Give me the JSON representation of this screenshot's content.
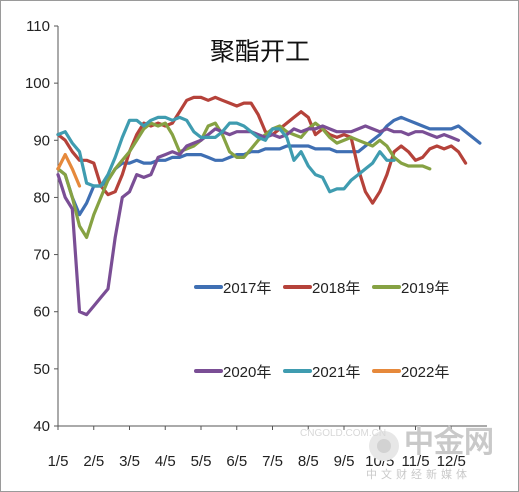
{
  "chart_data": {
    "type": "line",
    "title": "聚酯开工",
    "xlabel": "",
    "ylabel": "",
    "ylim": [
      40,
      110
    ],
    "yticks": [
      40,
      50,
      60,
      70,
      80,
      90,
      100,
      110
    ],
    "x_ticks": [
      "1/5",
      "2/5",
      "3/5",
      "4/5",
      "5/5",
      "6/5",
      "7/5",
      "8/5",
      "9/5",
      "10/5",
      "11/5",
      "12/5"
    ],
    "grid": false,
    "legend_position": "inside-bottom",
    "series": [
      {
        "name": "2017年",
        "color": "#3f6fb3",
        "values": [
          [
            1.0,
            85
          ],
          [
            1.2,
            84
          ],
          [
            1.4,
            80
          ],
          [
            1.6,
            77
          ],
          [
            1.8,
            79
          ],
          [
            2.0,
            82
          ],
          [
            2.2,
            82
          ],
          [
            2.4,
            83
          ],
          [
            2.6,
            85
          ],
          [
            2.8,
            86
          ],
          [
            3.0,
            86
          ],
          [
            3.2,
            86.5
          ],
          [
            3.4,
            86
          ],
          [
            3.6,
            86
          ],
          [
            3.8,
            86.5
          ],
          [
            4.0,
            86.5
          ],
          [
            4.2,
            87
          ],
          [
            4.4,
            87
          ],
          [
            4.6,
            87.5
          ],
          [
            4.8,
            87.5
          ],
          [
            5.0,
            87.5
          ],
          [
            5.2,
            87
          ],
          [
            5.4,
            86.5
          ],
          [
            5.6,
            86.5
          ],
          [
            5.8,
            87
          ],
          [
            6.0,
            87.5
          ],
          [
            6.2,
            87.5
          ],
          [
            6.4,
            88
          ],
          [
            6.6,
            88
          ],
          [
            6.8,
            88.5
          ],
          [
            7.0,
            88.5
          ],
          [
            7.2,
            88.5
          ],
          [
            7.4,
            89
          ],
          [
            7.6,
            89
          ],
          [
            7.8,
            89
          ],
          [
            8.0,
            89
          ],
          [
            8.2,
            88.5
          ],
          [
            8.4,
            88.5
          ],
          [
            8.6,
            88.5
          ],
          [
            8.8,
            88
          ],
          [
            9.0,
            88
          ],
          [
            9.2,
            88
          ],
          [
            9.4,
            88
          ],
          [
            9.6,
            89
          ],
          [
            9.8,
            90
          ],
          [
            10.0,
            91
          ],
          [
            10.2,
            92.5
          ],
          [
            10.4,
            93.5
          ],
          [
            10.6,
            94
          ],
          [
            10.8,
            93.5
          ],
          [
            11.0,
            93
          ],
          [
            11.2,
            92.5
          ],
          [
            11.4,
            92
          ],
          [
            11.6,
            92
          ],
          [
            11.8,
            92
          ],
          [
            12.0,
            92
          ],
          [
            12.2,
            92.5
          ],
          [
            12.4,
            91.5
          ],
          [
            12.6,
            90.5
          ],
          [
            12.8,
            89.5
          ]
        ]
      },
      {
        "name": "2018年",
        "color": "#b5423a",
        "values": [
          [
            1.0,
            91
          ],
          [
            1.2,
            90
          ],
          [
            1.4,
            88
          ],
          [
            1.6,
            86.5
          ],
          [
            1.8,
            86.5
          ],
          [
            2.0,
            86
          ],
          [
            2.2,
            82
          ],
          [
            2.4,
            80.5
          ],
          [
            2.6,
            81
          ],
          [
            2.8,
            84
          ],
          [
            3.0,
            88
          ],
          [
            3.2,
            91
          ],
          [
            3.4,
            93
          ],
          [
            3.6,
            92.5
          ],
          [
            3.8,
            93
          ],
          [
            4.0,
            92.5
          ],
          [
            4.2,
            93
          ],
          [
            4.4,
            95
          ],
          [
            4.6,
            97
          ],
          [
            4.8,
            97.5
          ],
          [
            5.0,
            97.5
          ],
          [
            5.2,
            97
          ],
          [
            5.4,
            97.5
          ],
          [
            5.6,
            97
          ],
          [
            5.8,
            96.5
          ],
          [
            6.0,
            96
          ],
          [
            6.2,
            96.5
          ],
          [
            6.4,
            96.5
          ],
          [
            6.6,
            94.5
          ],
          [
            6.8,
            91.5
          ],
          [
            7.0,
            91
          ],
          [
            7.2,
            92
          ],
          [
            7.4,
            93
          ],
          [
            7.6,
            94
          ],
          [
            7.8,
            95
          ],
          [
            8.0,
            94
          ],
          [
            8.2,
            91
          ],
          [
            8.4,
            92
          ],
          [
            8.6,
            91
          ],
          [
            8.8,
            90.5
          ],
          [
            9.0,
            91
          ],
          [
            9.2,
            90.5
          ],
          [
            9.4,
            85
          ],
          [
            9.6,
            81
          ],
          [
            9.8,
            79
          ],
          [
            10.0,
            81
          ],
          [
            10.2,
            84
          ],
          [
            10.4,
            88
          ],
          [
            10.6,
            89
          ],
          [
            10.8,
            88
          ],
          [
            11.0,
            86.5
          ],
          [
            11.2,
            87
          ],
          [
            11.4,
            88.5
          ],
          [
            11.6,
            89
          ],
          [
            11.8,
            88.5
          ],
          [
            12.0,
            89
          ],
          [
            12.2,
            88
          ],
          [
            12.4,
            86
          ]
        ]
      },
      {
        "name": "2019年",
        "color": "#86a243",
        "values": [
          [
            1.0,
            85
          ],
          [
            1.2,
            84
          ],
          [
            1.4,
            80
          ],
          [
            1.6,
            75
          ],
          [
            1.8,
            73
          ],
          [
            2.0,
            77
          ],
          [
            2.2,
            80
          ],
          [
            2.4,
            83
          ],
          [
            2.6,
            85
          ],
          [
            2.8,
            86.5
          ],
          [
            3.0,
            88
          ],
          [
            3.2,
            90
          ],
          [
            3.4,
            92
          ],
          [
            3.6,
            93
          ],
          [
            3.8,
            92.5
          ],
          [
            4.0,
            93
          ],
          [
            4.2,
            91
          ],
          [
            4.4,
            88
          ],
          [
            4.6,
            88.5
          ],
          [
            4.8,
            89
          ],
          [
            5.0,
            90
          ],
          [
            5.2,
            92.5
          ],
          [
            5.4,
            93
          ],
          [
            5.6,
            91
          ],
          [
            5.8,
            88
          ],
          [
            6.0,
            87
          ],
          [
            6.2,
            87
          ],
          [
            6.4,
            88.5
          ],
          [
            6.6,
            90
          ],
          [
            6.8,
            91
          ],
          [
            7.0,
            92
          ],
          [
            7.2,
            92.5
          ],
          [
            7.4,
            91.5
          ],
          [
            7.6,
            91
          ],
          [
            7.8,
            90.5
          ],
          [
            8.0,
            92
          ],
          [
            8.2,
            93
          ],
          [
            8.4,
            92
          ],
          [
            8.6,
            90.5
          ],
          [
            8.8,
            89.5
          ],
          [
            9.0,
            90
          ],
          [
            9.2,
            90.5
          ],
          [
            9.4,
            90
          ],
          [
            9.6,
            89.5
          ],
          [
            9.8,
            89
          ],
          [
            10.0,
            90
          ],
          [
            10.2,
            89
          ],
          [
            10.4,
            87
          ],
          [
            10.6,
            86
          ],
          [
            10.8,
            85.5
          ],
          [
            11.0,
            85.5
          ],
          [
            11.2,
            85.5
          ],
          [
            11.4,
            85
          ]
        ]
      },
      {
        "name": "2020年",
        "color": "#7a4e95",
        "values": [
          [
            1.0,
            84
          ],
          [
            1.2,
            80
          ],
          [
            1.4,
            78
          ],
          [
            1.6,
            60
          ],
          [
            1.8,
            59.5
          ],
          [
            2.0,
            61
          ],
          [
            2.2,
            62.5
          ],
          [
            2.4,
            64
          ],
          [
            2.6,
            73
          ],
          [
            2.8,
            80
          ],
          [
            3.0,
            81
          ],
          [
            3.2,
            84
          ],
          [
            3.4,
            83.5
          ],
          [
            3.6,
            84
          ],
          [
            3.8,
            87
          ],
          [
            4.0,
            87.5
          ],
          [
            4.2,
            88
          ],
          [
            4.4,
            87.5
          ],
          [
            4.6,
            89
          ],
          [
            4.8,
            89.5
          ],
          [
            5.0,
            90
          ],
          [
            5.2,
            91
          ],
          [
            5.4,
            92
          ],
          [
            5.6,
            91.5
          ],
          [
            5.8,
            91
          ],
          [
            6.0,
            91.5
          ],
          [
            6.2,
            91.5
          ],
          [
            6.4,
            91.5
          ],
          [
            6.6,
            91
          ],
          [
            6.8,
            90.5
          ],
          [
            7.0,
            91
          ],
          [
            7.2,
            90.5
          ],
          [
            7.4,
            91
          ],
          [
            7.6,
            92
          ],
          [
            7.8,
            91.5
          ],
          [
            8.0,
            92
          ],
          [
            8.2,
            92
          ],
          [
            8.4,
            92.5
          ],
          [
            8.6,
            92
          ],
          [
            8.8,
            91.5
          ],
          [
            9.0,
            91.5
          ],
          [
            9.2,
            91.5
          ],
          [
            9.4,
            92
          ],
          [
            9.6,
            92.5
          ],
          [
            9.8,
            92
          ],
          [
            10.0,
            91.5
          ],
          [
            10.2,
            92
          ],
          [
            10.4,
            91.5
          ],
          [
            10.6,
            91.5
          ],
          [
            10.8,
            91
          ],
          [
            11.0,
            91.5
          ],
          [
            11.2,
            91.5
          ],
          [
            11.4,
            91
          ],
          [
            11.6,
            90.5
          ],
          [
            11.8,
            91
          ],
          [
            12.0,
            90.5
          ],
          [
            12.2,
            90
          ]
        ]
      },
      {
        "name": "2021年",
        "color": "#3f9cb0",
        "values": [
          [
            1.0,
            91
          ],
          [
            1.2,
            91.5
          ],
          [
            1.4,
            89.5
          ],
          [
            1.6,
            88
          ],
          [
            1.8,
            82.5
          ],
          [
            2.0,
            82
          ],
          [
            2.2,
            82
          ],
          [
            2.4,
            84
          ],
          [
            2.6,
            87
          ],
          [
            2.8,
            90.5
          ],
          [
            3.0,
            93.5
          ],
          [
            3.2,
            93.5
          ],
          [
            3.4,
            92.5
          ],
          [
            3.6,
            93.5
          ],
          [
            3.8,
            94
          ],
          [
            4.0,
            94
          ],
          [
            4.2,
            93.5
          ],
          [
            4.4,
            94
          ],
          [
            4.6,
            93.5
          ],
          [
            4.8,
            91.5
          ],
          [
            5.0,
            90.5
          ],
          [
            5.2,
            90.5
          ],
          [
            5.4,
            90.5
          ],
          [
            5.6,
            91.5
          ],
          [
            5.8,
            93
          ],
          [
            6.0,
            93
          ],
          [
            6.2,
            92.5
          ],
          [
            6.4,
            91.5
          ],
          [
            6.6,
            90.5
          ],
          [
            6.8,
            90
          ],
          [
            7.0,
            92
          ],
          [
            7.2,
            92
          ],
          [
            7.4,
            90.5
          ],
          [
            7.6,
            86.5
          ],
          [
            7.8,
            88
          ],
          [
            8.0,
            85.5
          ],
          [
            8.2,
            84
          ],
          [
            8.4,
            83.5
          ],
          [
            8.6,
            81
          ],
          [
            8.8,
            81.5
          ],
          [
            9.0,
            81.5
          ],
          [
            9.2,
            83
          ],
          [
            9.4,
            84
          ],
          [
            9.6,
            85
          ],
          [
            9.8,
            86
          ],
          [
            10.0,
            88
          ],
          [
            10.2,
            86.5
          ],
          [
            10.4,
            86.5
          ]
        ]
      },
      {
        "name": "2022年",
        "color": "#e6893b",
        "values": [
          [
            1.0,
            85
          ],
          [
            1.2,
            87.5
          ],
          [
            1.4,
            85
          ],
          [
            1.6,
            82
          ]
        ]
      }
    ]
  },
  "watermark": {
    "brand": "中金网",
    "tagline": "中文财经新媒体",
    "url": "CNGOLD.COM.CN"
  }
}
